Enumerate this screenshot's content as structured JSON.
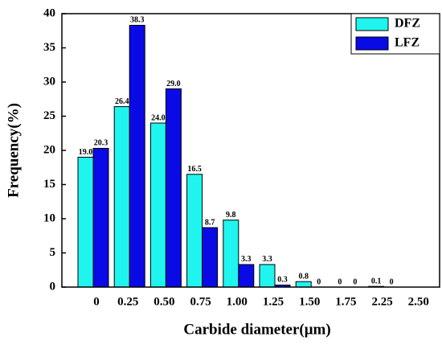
{
  "chart_data": {
    "type": "bar",
    "x_label": "Carbide diameter(μm)",
    "y_label": "Frequency(%)",
    "categories": [
      "0",
      "0.25",
      "0.50",
      "0.75",
      "1.00",
      "1.25",
      "1.50",
      "1.75",
      "2.25",
      "2.50"
    ],
    "series": [
      {
        "name": "DFZ",
        "color": "#1ff5ee",
        "values": [
          19.0,
          26.4,
          24.0,
          16.5,
          9.8,
          3.3,
          0.8,
          0,
          0.1,
          null
        ],
        "value_labels": [
          "19.0",
          "26.4",
          "24.0",
          "16.5",
          "9.8",
          "3.3",
          "0.8",
          "0",
          "0.1",
          null
        ]
      },
      {
        "name": "LFZ",
        "color": "#0a0ae6",
        "values": [
          20.3,
          38.3,
          29.0,
          8.7,
          3.3,
          0.3,
          0,
          0,
          0,
          null
        ],
        "value_labels": [
          "20.3",
          "38.3",
          "29.0",
          "8.7",
          "3.3",
          "0.3",
          "0",
          "0",
          "0",
          null
        ]
      }
    ],
    "ylim": [
      0,
      40
    ],
    "yticks": [
      0,
      5,
      10,
      15,
      20,
      25,
      30,
      35,
      40
    ],
    "legend": "upper right"
  }
}
